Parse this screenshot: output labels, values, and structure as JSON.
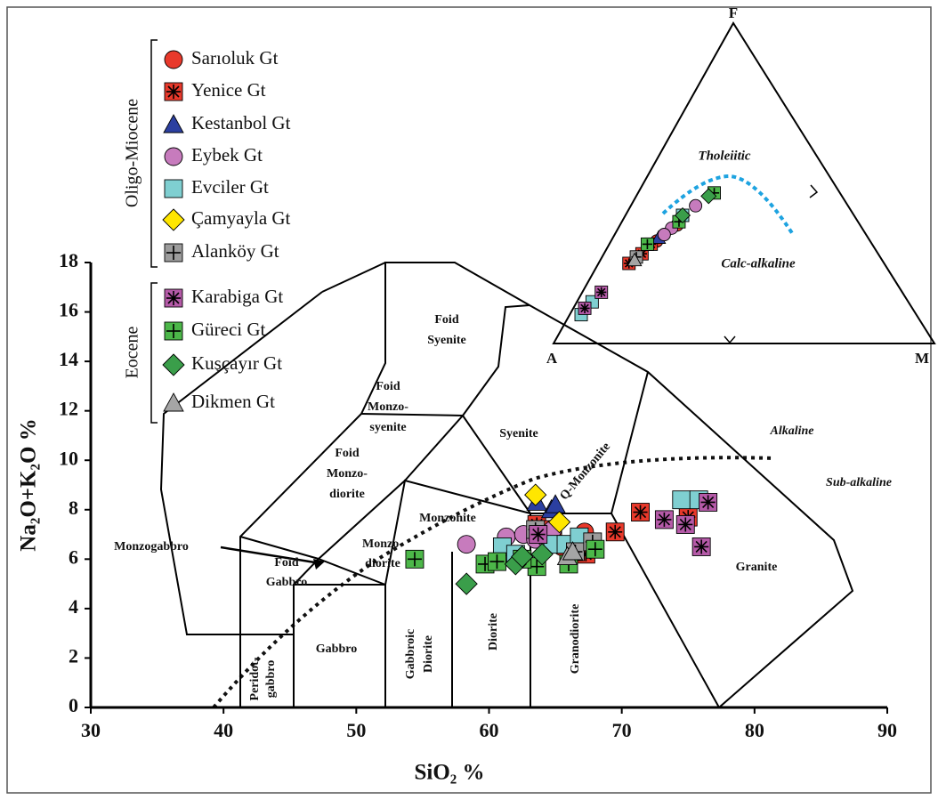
{
  "chart_data": [
    {
      "type": "scatter",
      "xlabel": "SiO₂ %",
      "ylabel": "Na₂O+K₂O %",
      "xlim": [
        30,
        90
      ],
      "ylim": [
        0,
        18
      ],
      "xticks": [
        30,
        40,
        50,
        60,
        70,
        80,
        90
      ],
      "yticks": [
        0,
        2,
        4,
        6,
        8,
        10,
        12,
        14,
        16,
        18
      ],
      "legend_groups": [
        {
          "label": "Oligo-Miocene"
        },
        {
          "label": "Eocene"
        }
      ],
      "field_labels": [
        [
          "Foid",
          "Syenite"
        ],
        [
          "Foid",
          "Monzo-",
          "syenite"
        ],
        [
          "Syenite"
        ],
        [
          "Foid",
          "Monzo-",
          "diorite"
        ],
        [
          "Monzonite"
        ],
        [
          "Monzo-",
          "diorite"
        ],
        [
          "Foid",
          "Gabbro"
        ],
        [
          "Gabbro"
        ],
        [
          "Q-Monzonite"
        ],
        [
          "Granite"
        ],
        [
          "Monzogabbro"
        ],
        [
          "Peridot-",
          "gabbro"
        ],
        [
          "Gabbroic",
          "Diorite"
        ],
        [
          "Diorite"
        ],
        [
          "Granodiorite"
        ],
        [
          "Alkaline"
        ],
        [
          "Sub-alkaline"
        ]
      ],
      "series": [
        {
          "name": "Sarıoluk Gt",
          "color": "#e8392b",
          "marker": "circle",
          "x": [
            63.5,
            64.5,
            67.2,
            65.5
          ],
          "values": [
            7.3,
            7.0,
            7.1,
            6.5
          ]
        },
        {
          "name": "Yenice Gt",
          "color": "#e8392b",
          "marker": "square-asterisk",
          "x": [
            63.6,
            67.3,
            69.5,
            71.4,
            75.0,
            64.8
          ],
          "values": [
            7.4,
            6.2,
            7.1,
            7.9,
            7.7,
            7.2
          ]
        },
        {
          "name": "Kestanbol Gt",
          "color": "#2b3fa0",
          "marker": "triangle",
          "x": [
            63.6,
            64.7,
            65.0
          ],
          "values": [
            8.3,
            8.0,
            8.2
          ]
        },
        {
          "name": "Eybek Gt",
          "color": "#c77bbd",
          "marker": "circle",
          "x": [
            58.3,
            61.3,
            62.6,
            63.5,
            64.2,
            64.8
          ],
          "values": [
            6.6,
            6.9,
            7.0,
            6.8,
            6.9,
            7.2
          ]
        },
        {
          "name": "Evciler Gt",
          "color": "#7fcfd1",
          "marker": "square",
          "x": [
            61.0,
            62.0,
            64.8,
            65.8,
            66.8,
            74.5,
            75.8
          ],
          "values": [
            6.5,
            6.2,
            6.6,
            6.6,
            6.9,
            8.4,
            8.4
          ]
        },
        {
          "name": "Çamyayla Gt",
          "color": "#ffe600",
          "marker": "diamond",
          "x": [
            63.5,
            65.3
          ],
          "values": [
            8.6,
            7.5
          ]
        },
        {
          "name": "Alanköy Gt",
          "color": "#9c9c9c",
          "marker": "square-plus",
          "x": [
            63.5,
            66.5,
            67.8
          ],
          "values": [
            7.2,
            6.3,
            6.7
          ]
        },
        {
          "name": "Karabiga Gt",
          "color": "#b55aa8",
          "marker": "square-asterisk",
          "x": [
            73.2,
            74.8,
            76.5,
            76.0,
            63.7
          ],
          "values": [
            7.6,
            7.4,
            8.3,
            6.5,
            7.0
          ]
        },
        {
          "name": "Güreci Gt",
          "color": "#4cb749",
          "marker": "square-plus",
          "x": [
            54.4,
            59.7,
            60.6,
            63.6,
            66.0,
            68.0,
            62.5
          ],
          "values": [
            6.0,
            5.8,
            5.9,
            5.7,
            5.8,
            6.4,
            6.0
          ]
        },
        {
          "name": "Kuşçayır Gt",
          "color": "#3a9e4a",
          "marker": "diamond",
          "x": [
            58.3,
            62.0,
            62.5,
            64.0
          ],
          "values": [
            5.0,
            5.8,
            6.1,
            6.2
          ]
        },
        {
          "name": "Dikmen Gt",
          "color": "#a5a5a5",
          "marker": "triangle",
          "x": [
            65.9,
            66.3
          ],
          "values": [
            6.1,
            6.3
          ]
        }
      ]
    },
    {
      "type": "ternary",
      "vertex_labels": {
        "top": "F",
        "left": "A",
        "right": "M"
      },
      "field_labels": [
        "Tholeiitic",
        "Calc-alkaline"
      ],
      "series": [
        {
          "a": [
            56,
            53,
            48
          ],
          "f": [
            32,
            34,
            37
          ],
          "m": [
            12,
            13,
            15
          ]
        },
        {
          "a": [
            67,
            62,
            58
          ],
          "f": [
            25,
            28,
            31
          ],
          "m": [
            8,
            10,
            11
          ]
        },
        {
          "a": [
            55
          ],
          "f": [
            33
          ],
          "m": [
            12
          ]
        },
        {
          "a": [
            50,
            40,
            53
          ],
          "f": [
            36,
            43,
            34
          ],
          "m": [
            14,
            17,
            13
          ]
        },
        {
          "a": [
            88,
            83,
            45
          ],
          "f": [
            9,
            13,
            40
          ],
          "m": [
            3,
            4,
            15
          ]
        },
        {
          "a": [],
          "f": [],
          "m": []
        },
        {
          "a": [
            64
          ],
          "f": [
            27
          ],
          "m": [
            9
          ]
        },
        {
          "a": [
            79,
            86
          ],
          "f": [
            16,
            11
          ],
          "m": [
            5,
            3
          ]
        },
        {
          "a": [
            33,
            47,
            59
          ],
          "f": [
            47,
            38,
            31
          ],
          "m": [
            20,
            15,
            10
          ]
        },
        {
          "a": [
            35,
            45
          ],
          "f": [
            46,
            40
          ],
          "m": [
            19,
            15
          ]
        },
        {
          "a": [
            65
          ],
          "f": [
            26
          ],
          "m": [
            9
          ]
        }
      ]
    }
  ]
}
